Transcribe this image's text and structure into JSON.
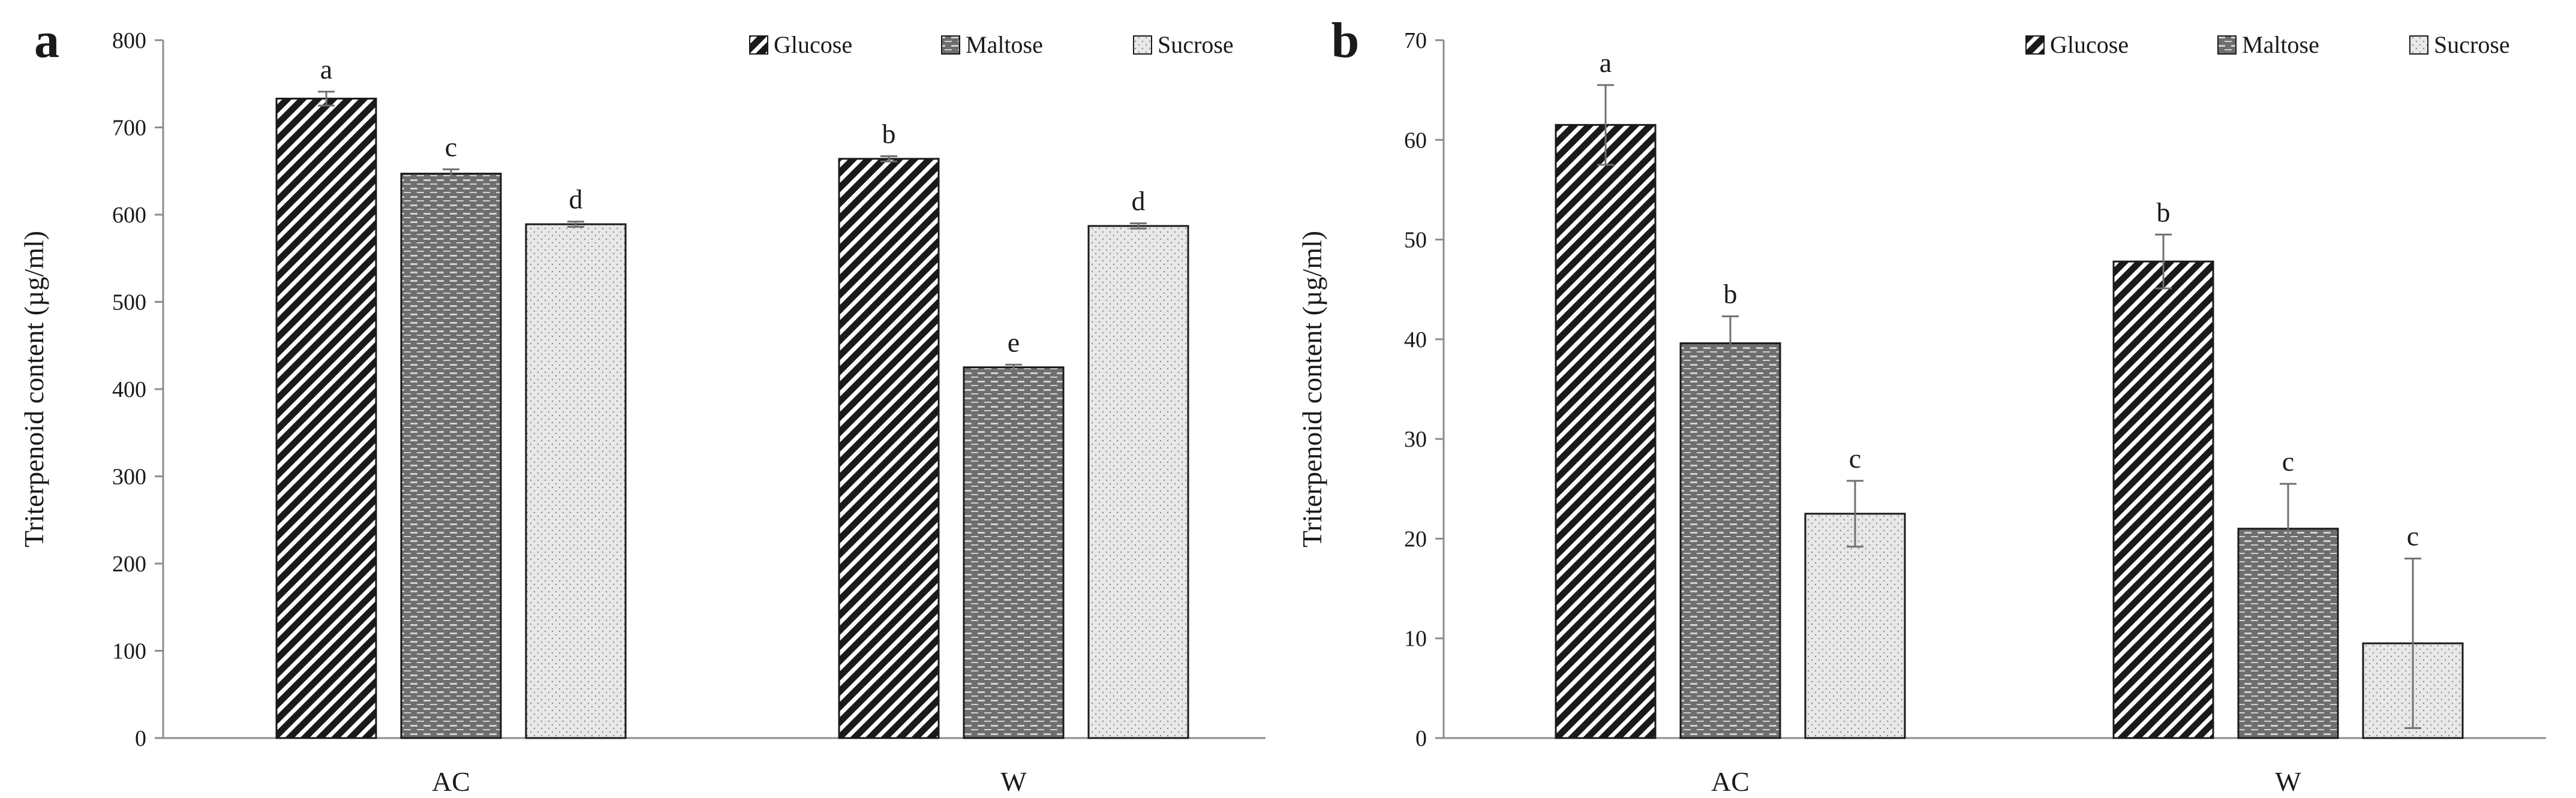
{
  "chart_data": [
    {
      "type": "bar",
      "panel": "a",
      "categories": [
        "AC",
        "W"
      ],
      "series": [
        {
          "name": "Glucose",
          "values": [
            733,
            664
          ],
          "errors": [
            8,
            3
          ],
          "letters": [
            "a",
            "b"
          ]
        },
        {
          "name": "Maltose",
          "values": [
            647,
            425
          ],
          "errors": [
            5,
            3
          ],
          "letters": [
            "c",
            "e"
          ]
        },
        {
          "name": "Sucrose",
          "values": [
            589,
            587
          ],
          "errors": [
            3,
            3
          ],
          "letters": [
            "d",
            "d"
          ]
        }
      ],
      "xlabel": "",
      "ylabel": "Triterpenoid content (µg/ml)",
      "ylim": [
        0,
        800
      ],
      "yticks": [
        0,
        100,
        200,
        300,
        400,
        500,
        600,
        700,
        800
      ],
      "legend": "top-right",
      "grid": false
    },
    {
      "type": "bar",
      "panel": "b",
      "categories": [
        "AC",
        "W"
      ],
      "series": [
        {
          "name": "Glucose",
          "values": [
            61.5,
            47.8
          ],
          "errors": [
            4.0,
            2.7
          ],
          "letters": [
            "a",
            "b"
          ]
        },
        {
          "name": "Maltose",
          "values": [
            39.6,
            21.0
          ],
          "errors": [
            2.7,
            4.5
          ],
          "letters": [
            "b",
            "c"
          ]
        },
        {
          "name": "Sucrose",
          "values": [
            22.5,
            9.5
          ],
          "errors": [
            3.3,
            8.5
          ],
          "letters": [
            "c",
            "c"
          ]
        }
      ],
      "xlabel": "",
      "ylabel": "Triterpenoid content (µg/ml)",
      "ylim": [
        0,
        70
      ],
      "yticks": [
        0,
        10,
        20,
        30,
        40,
        50,
        60,
        70
      ],
      "legend": "top-right",
      "grid": false
    }
  ],
  "colors": {
    "axis": "#8c8c8c",
    "bar_outline": "#1a1a1a",
    "glucose_fill": "#1a1a1a",
    "maltose_fill": "#7a7a7a",
    "sucrose_fill": "#e6e6e6"
  }
}
